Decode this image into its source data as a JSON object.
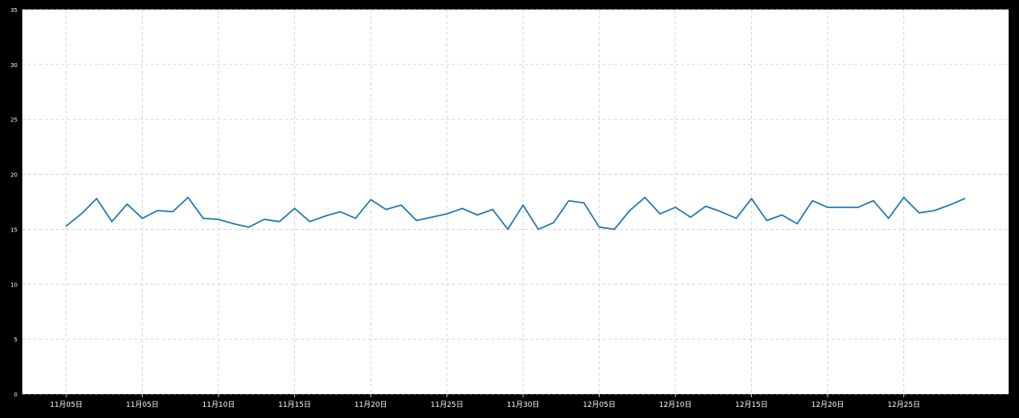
{
  "chart_data": {
    "type": "line",
    "title": "",
    "xlabel": "",
    "ylabel": "",
    "grid": true,
    "ylim": [
      0,
      35
    ],
    "yticks": [
      0,
      5,
      10,
      15,
      20,
      25,
      30,
      35
    ],
    "xtick_labels": [
      "11月05日",
      "11月05日",
      "11月10日",
      "11月15日",
      "11月20日",
      "11月25日",
      "11月30日",
      "12月05日",
      "12月10日",
      "12月15日",
      "12月20日",
      "12月25日"
    ],
    "line_color": "#1f77b4",
    "series": [
      {
        "values": [
          15.3,
          16.4,
          17.8,
          15.7,
          17.3,
          16.0,
          16.7,
          16.6,
          17.9,
          16.0,
          15.9,
          15.5,
          15.2,
          15.9,
          15.7,
          16.9,
          15.7,
          16.2,
          16.6,
          16.0,
          17.7,
          16.8,
          17.2,
          15.8,
          16.1,
          16.4,
          16.9,
          16.3,
          16.8,
          15.0,
          17.2,
          15.0,
          15.6,
          17.6,
          17.4,
          15.2,
          15.0,
          16.7,
          17.9,
          16.4,
          17.0,
          16.1,
          17.1,
          16.6,
          16.0,
          17.8,
          15.8,
          16.3,
          15.5,
          17.6,
          17.0,
          17.0,
          17.0,
          17.6,
          16.0,
          17.9,
          16.5,
          16.7,
          17.2,
          17.8
        ]
      }
    ]
  }
}
